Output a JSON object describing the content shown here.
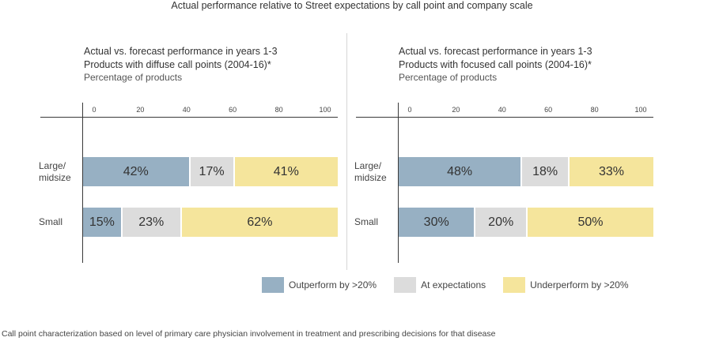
{
  "title": "Actual performance relative to Street expectations by call point and company scale",
  "colors": {
    "outperform": "#97b0c3",
    "at": "#dcdcdc",
    "under": "#f5e59c"
  },
  "legend": [
    {
      "key": "outperform",
      "label": "Outperform by >20%"
    },
    {
      "key": "at",
      "label": "At expectations"
    },
    {
      "key": "under",
      "label": "Underperform by >20%"
    }
  ],
  "footnote": "Call point characterization based on level of primary care physician involvement in treatment and prescribing decisions for that disease",
  "chart_data": [
    {
      "type": "bar",
      "orientation": "horizontal-stacked",
      "title_line1": "Actual vs. forecast performance in years 1-3",
      "title_line2": "Products with diffuse call points (2004-16)*",
      "subtitle": "Percentage of products",
      "xlim": [
        0,
        100
      ],
      "ticks": [
        "0",
        "20",
        "40",
        "60",
        "80",
        "100"
      ],
      "categories": [
        "Large/\nmidsize",
        "Small"
      ],
      "series": [
        {
          "name": "Outperform by >20%",
          "values": [
            42,
            15
          ],
          "labels": [
            "42%",
            "15%"
          ]
        },
        {
          "name": "At expectations",
          "values": [
            17,
            23
          ],
          "labels": [
            "17%",
            "23%"
          ]
        },
        {
          "name": "Underperform by >20%",
          "values": [
            41,
            62
          ],
          "labels": [
            "41%",
            "62%"
          ]
        }
      ]
    },
    {
      "type": "bar",
      "orientation": "horizontal-stacked",
      "title_line1": "Actual vs. forecast performance in years 1-3",
      "title_line2": "Products with focused call points (2004-16)*",
      "subtitle": "Percentage of products",
      "xlim": [
        0,
        100
      ],
      "ticks": [
        "0",
        "20",
        "40",
        "60",
        "80",
        "100"
      ],
      "categories": [
        "Large/\nmidsize",
        "Small"
      ],
      "series": [
        {
          "name": "Outperform by >20%",
          "values": [
            48,
            30
          ],
          "labels": [
            "48%",
            "30%"
          ]
        },
        {
          "name": "At expectations",
          "values": [
            18,
            20
          ],
          "labels": [
            "18%",
            "20%"
          ]
        },
        {
          "name": "Underperform by >20%",
          "values": [
            33,
            50
          ],
          "labels": [
            "33%",
            "50%"
          ]
        }
      ]
    }
  ]
}
